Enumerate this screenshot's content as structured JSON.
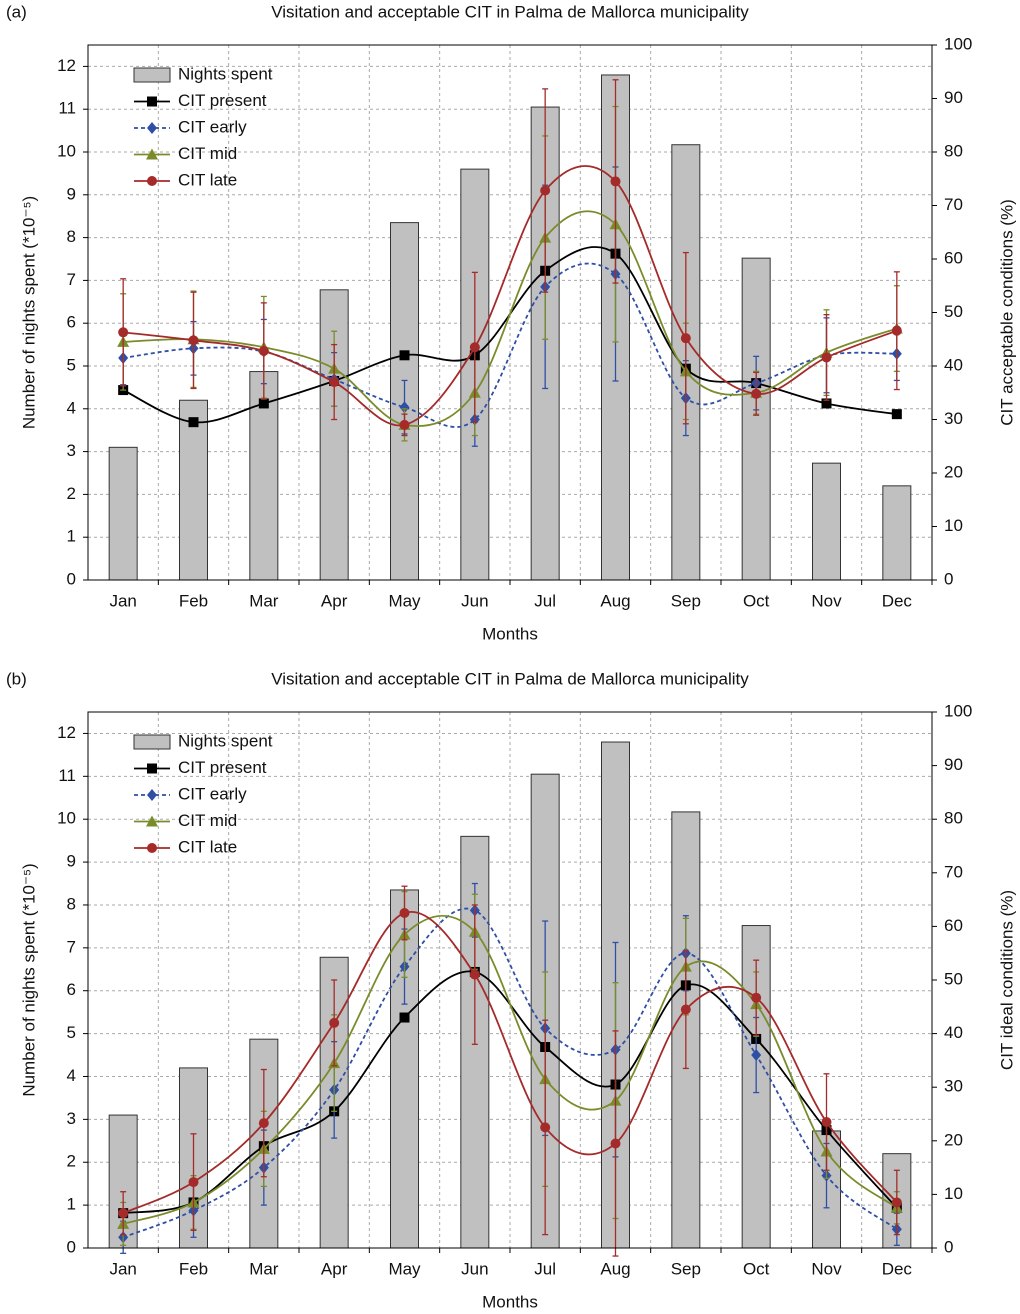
{
  "chart_data": [
    {
      "type": "combo",
      "panel_label": "(a)",
      "title": "Visitation and acceptable CIT in Palma de Mallorca municipality",
      "x_label": "Months",
      "y_label": "Number of nights spent (*10⁻⁵)",
      "y2_label": "CIT acceptable conditions (%)",
      "categories": [
        "Jan",
        "Feb",
        "Mar",
        "Apr",
        "May",
        "Jun",
        "Jul",
        "Aug",
        "Sep",
        "Oct",
        "Nov",
        "Dec"
      ],
      "ylim": [
        0,
        12.5
      ],
      "yticks": [
        0,
        1,
        2,
        3,
        4,
        5,
        6,
        7,
        8,
        9,
        10,
        11,
        12
      ],
      "y2lim": [
        0,
        100
      ],
      "y2ticks": [
        0,
        10,
        20,
        30,
        40,
        50,
        60,
        70,
        80,
        90,
        100
      ],
      "grid": true,
      "series": [
        {
          "name": "Nights spent",
          "type": "bar",
          "color": "#c0c0c0",
          "values": [
            3.1,
            4.2,
            4.87,
            6.78,
            8.35,
            9.6,
            11.05,
            11.8,
            10.17,
            7.52,
            2.73,
            2.2
          ]
        },
        {
          "name": "CIT present",
          "type": "line",
          "axis": "y2",
          "marker": "square",
          "color": "#000000",
          "values": [
            35.5,
            29.5,
            33,
            37.2,
            42,
            42,
            57.8,
            61,
            39.5,
            36.8,
            33,
            31
          ]
        },
        {
          "name": "CIT early",
          "type": "line",
          "axis": "y2",
          "marker": "diamond",
          "dash": true,
          "color": "#2f4fa6",
          "values": [
            41.5,
            43.3,
            42.7,
            37.5,
            32.3,
            30,
            54.8,
            57.2,
            34,
            36.8,
            42,
            42.3
          ],
          "errors": [
            5,
            5,
            6,
            5,
            5,
            5,
            19,
            20,
            7,
            5,
            7,
            5
          ]
        },
        {
          "name": "CIT mid",
          "type": "line",
          "axis": "y2",
          "marker": "triangle",
          "color": "#7a8c2a",
          "values": [
            44.5,
            45,
            43.5,
            39.5,
            29,
            35,
            64,
            66.5,
            39,
            35,
            42.5,
            47
          ],
          "errors": [
            9,
            9,
            9.5,
            7,
            3,
            8,
            19,
            22,
            9,
            4,
            8,
            8
          ]
        },
        {
          "name": "CIT late",
          "type": "line",
          "axis": "y2",
          "marker": "circle",
          "color": "#a52a2a",
          "values": [
            46.3,
            44.8,
            42.8,
            37,
            29,
            43.5,
            72.8,
            74.5,
            45.2,
            34.8,
            41.6,
            46.6
          ],
          "errors": [
            10,
            9,
            9,
            7,
            2,
            14,
            19,
            19,
            16,
            4,
            8,
            11
          ]
        }
      ]
    },
    {
      "type": "combo",
      "panel_label": "(b)",
      "title": "Visitation and acceptable CIT in Palma de Mallorca municipality",
      "x_label": "Months",
      "y_label": "Number of nights spent (*10⁻⁵)",
      "y2_label": "CIT ideal conditions (%)",
      "categories": [
        "Jan",
        "Feb",
        "Mar",
        "Apr",
        "May",
        "Jun",
        "Jul",
        "Aug",
        "Sep",
        "Oct",
        "Nov",
        "Dec"
      ],
      "ylim": [
        0,
        12.5
      ],
      "yticks": [
        0,
        1,
        2,
        3,
        4,
        5,
        6,
        7,
        8,
        9,
        10,
        11,
        12
      ],
      "y2lim": [
        0,
        100
      ],
      "y2ticks": [
        0,
        10,
        20,
        30,
        40,
        50,
        60,
        70,
        80,
        90,
        100
      ],
      "grid": true,
      "series": [
        {
          "name": "Nights spent",
          "type": "bar",
          "color": "#c0c0c0",
          "values": [
            3.1,
            4.2,
            4.87,
            6.78,
            8.35,
            9.6,
            11.05,
            11.8,
            10.17,
            7.52,
            2.73,
            2.2
          ]
        },
        {
          "name": "CIT present",
          "type": "line",
          "axis": "y2",
          "marker": "square",
          "color": "#000000",
          "values": [
            6.5,
            8.5,
            19,
            25.5,
            43,
            51.5,
            37.5,
            30.5,
            49,
            39,
            22,
            7.5
          ]
        },
        {
          "name": "CIT early",
          "type": "line",
          "axis": "y2",
          "marker": "diamond",
          "dash": true,
          "color": "#2f4fa6",
          "values": [
            2,
            7,
            15,
            29.5,
            52.5,
            63,
            41,
            37,
            55,
            36,
            13.5,
            3.5
          ],
          "errors": [
            3,
            5,
            7,
            9,
            7,
            5,
            20,
            20,
            7,
            7,
            6,
            3
          ]
        },
        {
          "name": "CIT mid",
          "type": "line",
          "axis": "y2",
          "marker": "triangle",
          "color": "#7a8c2a",
          "values": [
            4.5,
            8.5,
            18.5,
            34.5,
            58.5,
            59,
            31.5,
            27.5,
            52.5,
            45.5,
            18,
            7.5
          ],
          "errors": [
            4,
            5,
            7,
            9,
            8,
            7,
            20,
            22,
            9,
            6,
            5,
            3
          ]
        },
        {
          "name": "CIT late",
          "type": "line",
          "axis": "y2",
          "marker": "circle",
          "color": "#a52a2a",
          "values": [
            6.5,
            12.3,
            23.3,
            42,
            62.5,
            51,
            22.5,
            19.5,
            44.5,
            46.7,
            23.5,
            8.5
          ],
          "errors": [
            4,
            9,
            10,
            8,
            5,
            13,
            20,
            21,
            11,
            7,
            9,
            6
          ]
        }
      ]
    }
  ]
}
